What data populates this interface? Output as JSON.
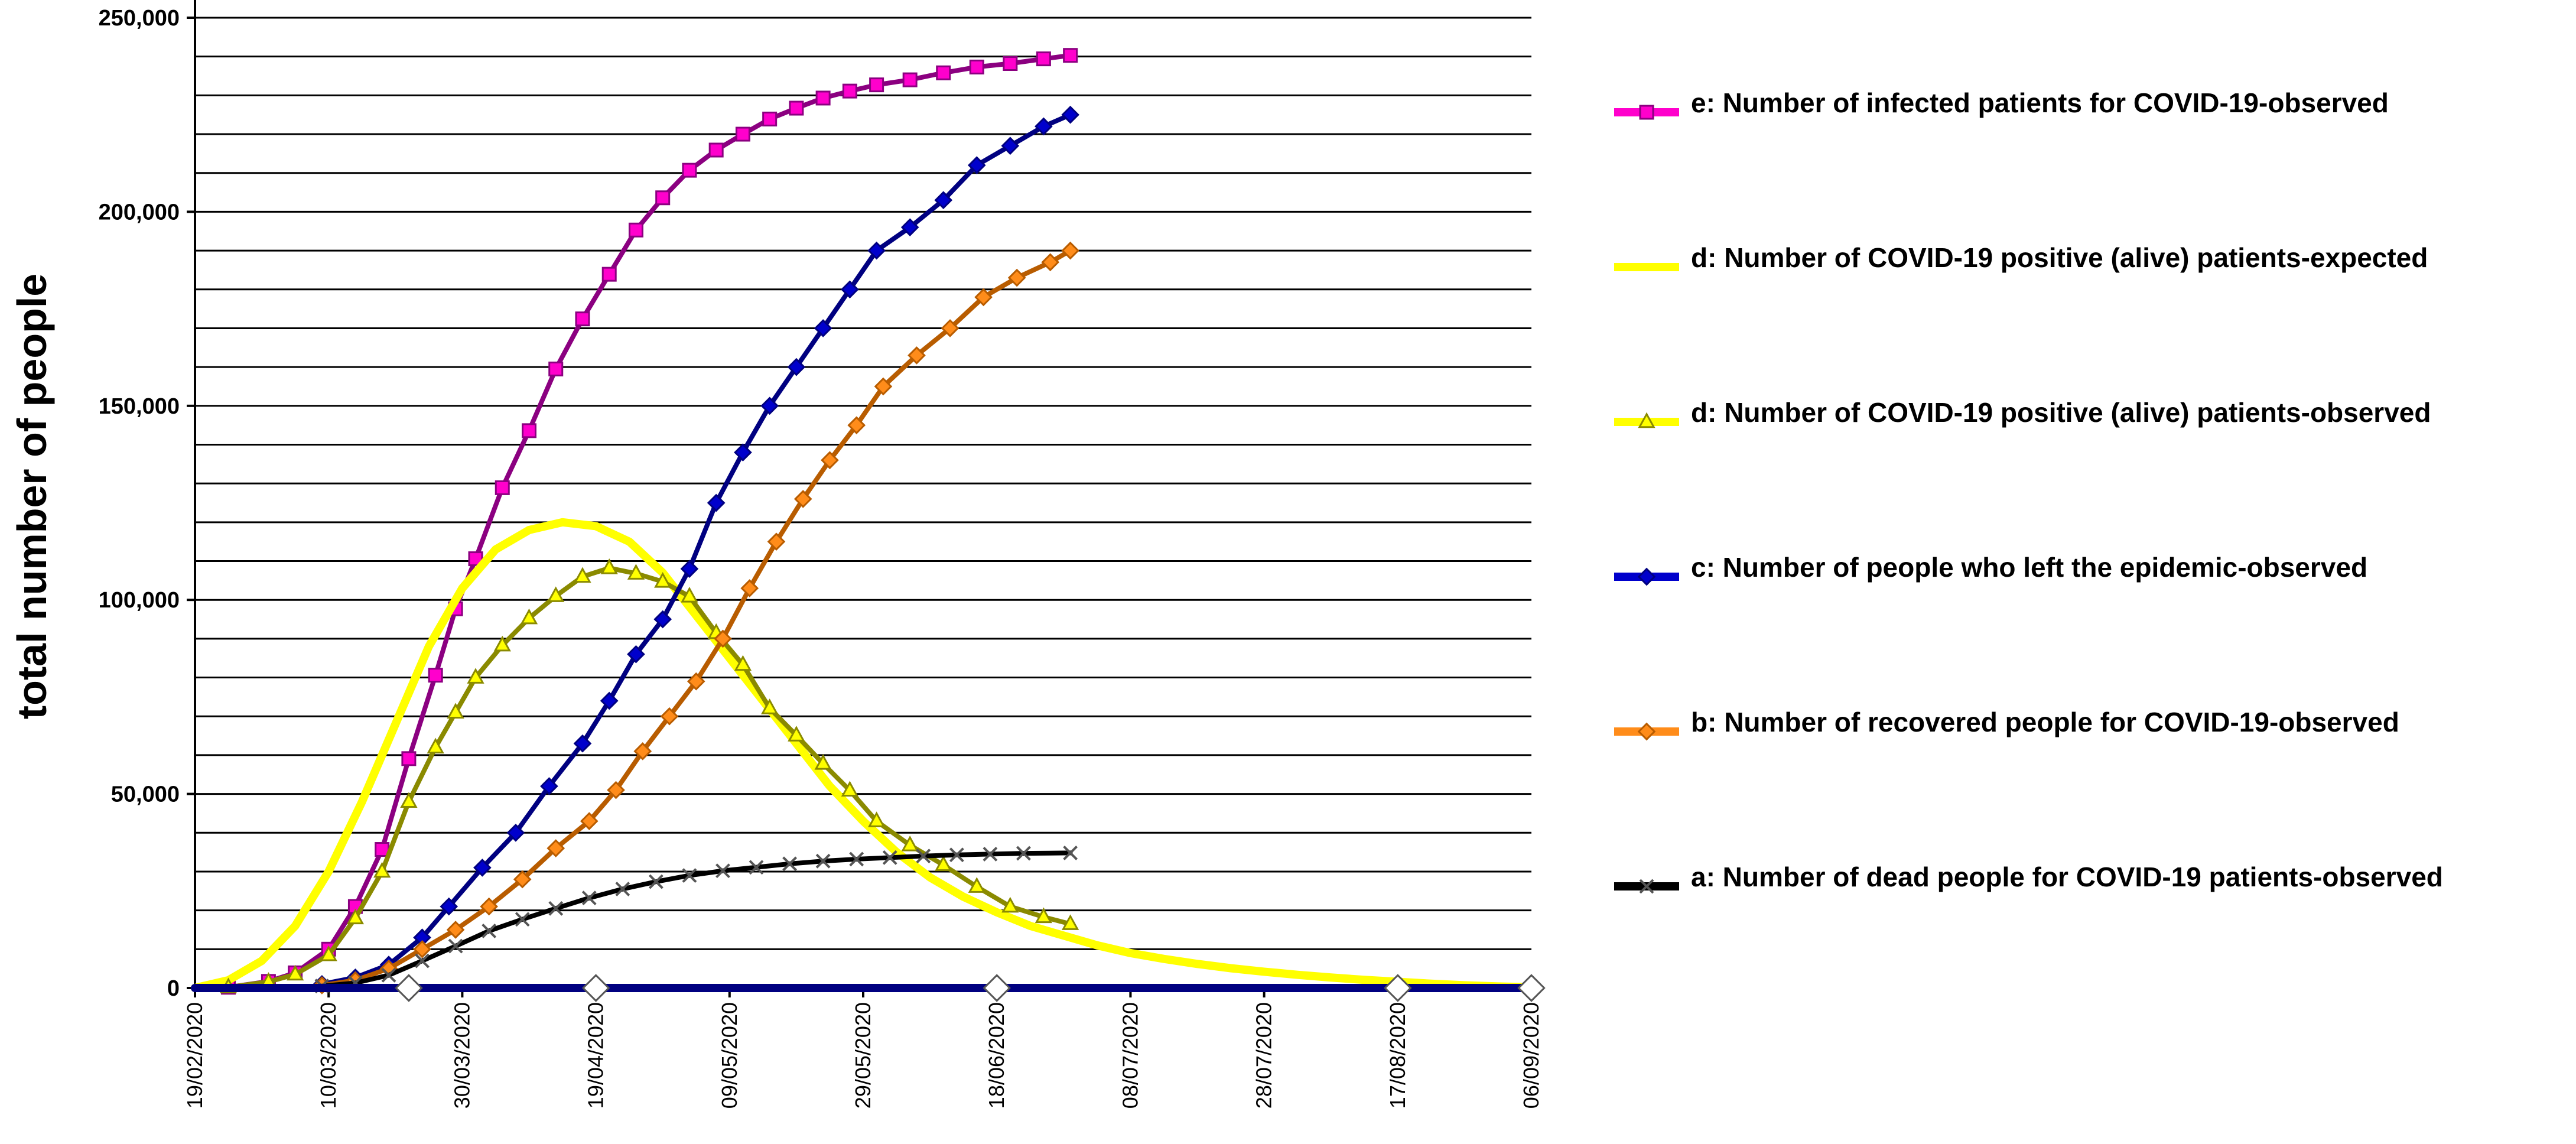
{
  "chart_data": {
    "type": "line",
    "title": "",
    "xlabel": "",
    "ylabel": "total number of people",
    "ylim": [
      0,
      250000
    ],
    "y_ticks": [
      {
        "value": 0,
        "label": "0"
      },
      {
        "value": 50000,
        "label": "50,000"
      },
      {
        "value": 100000,
        "label": "100,000"
      },
      {
        "value": 150000,
        "label": "150,000"
      },
      {
        "value": 200000,
        "label": "200,000"
      },
      {
        "value": 250000,
        "label": "250,000"
      }
    ],
    "y_minor_step": 10000,
    "x_start": "19/02/2020",
    "x_end": "06/09/2020",
    "x_ticks": [
      "19/02/2020",
      "10/03/2020",
      "30/03/2020",
      "19/04/2020",
      "09/05/2020",
      "29/05/2020",
      "18/06/2020",
      "08/07/2020",
      "28/07/2020",
      "17/08/2020",
      "06/09/2020"
    ],
    "grid": "horizontal",
    "legend_position": "right",
    "series": [
      {
        "name": "e: Number of infected patients for COVID-19-observed",
        "color": "#FF00CC",
        "line_color": "#8B0080",
        "marker": "square",
        "marker_every": 1,
        "points": [
          [
            "24/02/2020",
            200
          ],
          [
            "01/03/2020",
            1700
          ],
          [
            "05/03/2020",
            3900
          ],
          [
            "10/03/2020",
            10000
          ],
          [
            "14/03/2020",
            21000
          ],
          [
            "18/03/2020",
            35700
          ],
          [
            "22/03/2020",
            59100
          ],
          [
            "26/03/2020",
            80600
          ],
          [
            "29/03/2020",
            97700
          ],
          [
            "01/04/2020",
            110600
          ],
          [
            "05/04/2020",
            128900
          ],
          [
            "09/04/2020",
            143600
          ],
          [
            "13/04/2020",
            159500
          ],
          [
            "17/04/2020",
            172400
          ],
          [
            "21/04/2020",
            183900
          ],
          [
            "25/04/2020",
            195300
          ],
          [
            "29/04/2020",
            203600
          ],
          [
            "03/05/2020",
            210700
          ],
          [
            "07/05/2020",
            215900
          ],
          [
            "11/05/2020",
            220000
          ],
          [
            "15/05/2020",
            223900
          ],
          [
            "19/05/2020",
            226700
          ],
          [
            "23/05/2020",
            229300
          ],
          [
            "27/05/2020",
            231100
          ],
          [
            "31/05/2020",
            232700
          ],
          [
            "05/06/2020",
            234000
          ],
          [
            "10/06/2020",
            235800
          ],
          [
            "15/06/2020",
            237300
          ],
          [
            "20/06/2020",
            238200
          ],
          [
            "25/06/2020",
            239400
          ],
          [
            "29/06/2020",
            240300
          ]
        ]
      },
      {
        "name": "d: Number of COVID-19 positive (alive) patients-expected",
        "color": "#FFFF00",
        "marker": "none",
        "points": [
          [
            "19/02/2020",
            0
          ],
          [
            "24/02/2020",
            2000
          ],
          [
            "29/02/2020",
            7000
          ],
          [
            "05/03/2020",
            16000
          ],
          [
            "10/03/2020",
            30000
          ],
          [
            "15/03/2020",
            48000
          ],
          [
            "20/03/2020",
            68000
          ],
          [
            "25/03/2020",
            88000
          ],
          [
            "30/03/2020",
            103000
          ],
          [
            "04/04/2020",
            113000
          ],
          [
            "09/04/2020",
            118000
          ],
          [
            "14/04/2020",
            120000
          ],
          [
            "19/04/2020",
            119000
          ],
          [
            "24/04/2020",
            115000
          ],
          [
            "29/04/2020",
            107000
          ],
          [
            "04/05/2020",
            96000
          ],
          [
            "09/05/2020",
            85000
          ],
          [
            "14/05/2020",
            74000
          ],
          [
            "19/05/2020",
            63000
          ],
          [
            "24/05/2020",
            52000
          ],
          [
            "29/05/2020",
            43000
          ],
          [
            "03/06/2020",
            35000
          ],
          [
            "08/06/2020",
            28500
          ],
          [
            "13/06/2020",
            23500
          ],
          [
            "18/06/2020",
            19500
          ],
          [
            "23/06/2020",
            16000
          ],
          [
            "28/06/2020",
            13500
          ],
          [
            "03/07/2020",
            11000
          ],
          [
            "08/07/2020",
            9000
          ],
          [
            "13/07/2020",
            7500
          ],
          [
            "18/07/2020",
            6200
          ],
          [
            "23/07/2020",
            5100
          ],
          [
            "28/07/2020",
            4200
          ],
          [
            "02/08/2020",
            3400
          ],
          [
            "07/08/2020",
            2700
          ],
          [
            "12/08/2020",
            2100
          ],
          [
            "17/08/2020",
            1600
          ],
          [
            "22/08/2020",
            1100
          ],
          [
            "27/08/2020",
            700
          ],
          [
            "01/09/2020",
            400
          ],
          [
            "06/09/2020",
            200
          ]
        ]
      },
      {
        "name": "d: Number of COVID-19 positive (alive) patients-observed",
        "color": "#FFFF00",
        "line_color": "#8A8A00",
        "marker": "triangle",
        "marker_every": 1,
        "points": [
          [
            "24/02/2020",
            200
          ],
          [
            "01/03/2020",
            1600
          ],
          [
            "05/03/2020",
            3500
          ],
          [
            "10/03/2020",
            8500
          ],
          [
            "14/03/2020",
            18000
          ],
          [
            "18/03/2020",
            30000
          ],
          [
            "22/03/2020",
            48000
          ],
          [
            "26/03/2020",
            62000
          ],
          [
            "29/03/2020",
            71000
          ],
          [
            "01/04/2020",
            80000
          ],
          [
            "05/04/2020",
            88300
          ],
          [
            "09/04/2020",
            95300
          ],
          [
            "13/04/2020",
            101000
          ],
          [
            "17/04/2020",
            106000
          ],
          [
            "21/04/2020",
            108200
          ],
          [
            "25/04/2020",
            106800
          ],
          [
            "29/04/2020",
            104700
          ],
          [
            "03/05/2020",
            100900
          ],
          [
            "07/05/2020",
            91500
          ],
          [
            "11/05/2020",
            83300
          ],
          [
            "15/05/2020",
            72100
          ],
          [
            "19/05/2020",
            65100
          ],
          [
            "23/05/2020",
            57800
          ],
          [
            "27/05/2020",
            50900
          ],
          [
            "31/05/2020",
            43000
          ],
          [
            "05/06/2020",
            36800
          ],
          [
            "10/06/2020",
            31700
          ],
          [
            "15/06/2020",
            26100
          ],
          [
            "20/06/2020",
            21000
          ],
          [
            "25/06/2020",
            18300
          ],
          [
            "29/06/2020",
            16500
          ]
        ]
      },
      {
        "name": "c: Number of people who left the epidemic-observed",
        "color": "#0000CC",
        "line_color": "#000080",
        "marker": "diamond",
        "marker_every": 1,
        "points": [
          [
            "09/03/2020",
            1000
          ],
          [
            "14/03/2020",
            2700
          ],
          [
            "19/03/2020",
            6000
          ],
          [
            "24/03/2020",
            13000
          ],
          [
            "28/03/2020",
            21000
          ],
          [
            "02/04/2020",
            31000
          ],
          [
            "07/04/2020",
            40000
          ],
          [
            "12/04/2020",
            52000
          ],
          [
            "17/04/2020",
            63000
          ],
          [
            "21/04/2020",
            74000
          ],
          [
            "25/04/2020",
            86000
          ],
          [
            "29/04/2020",
            95000
          ],
          [
            "03/05/2020",
            108000
          ],
          [
            "07/05/2020",
            125000
          ],
          [
            "11/05/2020",
            138000
          ],
          [
            "15/05/2020",
            150000
          ],
          [
            "19/05/2020",
            160000
          ],
          [
            "23/05/2020",
            170000
          ],
          [
            "27/05/2020",
            180000
          ],
          [
            "31/05/2020",
            190000
          ],
          [
            "05/06/2020",
            196000
          ],
          [
            "10/06/2020",
            203000
          ],
          [
            "15/06/2020",
            212000
          ],
          [
            "20/06/2020",
            217000
          ],
          [
            "25/06/2020",
            222000
          ],
          [
            "29/06/2020",
            225000
          ]
        ]
      },
      {
        "name": "b: Number of recovered people for COVID-19-observed",
        "color": "#FF8C1A",
        "line_color": "#B85C00",
        "marker": "diamond",
        "marker_every": 1,
        "points": [
          [
            "09/03/2020",
            700
          ],
          [
            "14/03/2020",
            2000
          ],
          [
            "19/03/2020",
            5000
          ],
          [
            "24/03/2020",
            10000
          ],
          [
            "29/03/2020",
            15000
          ],
          [
            "03/04/2020",
            21000
          ],
          [
            "08/04/2020",
            28000
          ],
          [
            "13/04/2020",
            36000
          ],
          [
            "18/04/2020",
            43000
          ],
          [
            "22/04/2020",
            51000
          ],
          [
            "26/04/2020",
            61000
          ],
          [
            "30/04/2020",
            70000
          ],
          [
            "04/05/2020",
            79000
          ],
          [
            "08/05/2020",
            90000
          ],
          [
            "12/05/2020",
            103000
          ],
          [
            "16/05/2020",
            115000
          ],
          [
            "20/05/2020",
            126000
          ],
          [
            "24/05/2020",
            136000
          ],
          [
            "28/05/2020",
            145000
          ],
          [
            "01/06/2020",
            155000
          ],
          [
            "06/06/2020",
            163000
          ],
          [
            "11/06/2020",
            170000
          ],
          [
            "16/06/2020",
            178000
          ],
          [
            "21/06/2020",
            183000
          ],
          [
            "26/06/2020",
            187000
          ],
          [
            "29/06/2020",
            190000
          ]
        ]
      },
      {
        "name": "a: Number of dead people for COVID-19 patients-observed",
        "color": "#000000",
        "line_color": "#000000",
        "marker": "x",
        "marker_every": 1,
        "points": [
          [
            "09/03/2020",
            500
          ],
          [
            "14/03/2020",
            1300
          ],
          [
            "19/03/2020",
            3300
          ],
          [
            "24/03/2020",
            7000
          ],
          [
            "29/03/2020",
            10800
          ],
          [
            "03/04/2020",
            14700
          ],
          [
            "08/04/2020",
            17700
          ],
          [
            "13/04/2020",
            20500
          ],
          [
            "18/04/2020",
            23200
          ],
          [
            "23/04/2020",
            25500
          ],
          [
            "28/04/2020",
            27400
          ],
          [
            "03/05/2020",
            29000
          ],
          [
            "08/05/2020",
            30200
          ],
          [
            "13/05/2020",
            31100
          ],
          [
            "18/05/2020",
            32000
          ],
          [
            "23/05/2020",
            32700
          ],
          [
            "28/05/2020",
            33200
          ],
          [
            "02/06/2020",
            33600
          ],
          [
            "07/06/2020",
            34000
          ],
          [
            "12/06/2020",
            34300
          ],
          [
            "17/06/2020",
            34500
          ],
          [
            "22/06/2020",
            34700
          ],
          [
            "29/06/2020",
            34800
          ]
        ]
      },
      {
        "name": "",
        "color": "#000080",
        "marker": "none",
        "legend": false,
        "points": [
          [
            "19/02/2020",
            0
          ],
          [
            "06/09/2020",
            0
          ]
        ]
      },
      {
        "name": "",
        "color": "#FFFFFF",
        "line_color": "#555555",
        "marker": "diamond",
        "marker_every": 1,
        "line": false,
        "legend": false,
        "points": [
          [
            "22/03/2020",
            0
          ],
          [
            "19/04/2020",
            0
          ],
          [
            "18/06/2020",
            0
          ],
          [
            "17/08/2020",
            0
          ],
          [
            "06/09/2020",
            0
          ]
        ]
      }
    ]
  }
}
